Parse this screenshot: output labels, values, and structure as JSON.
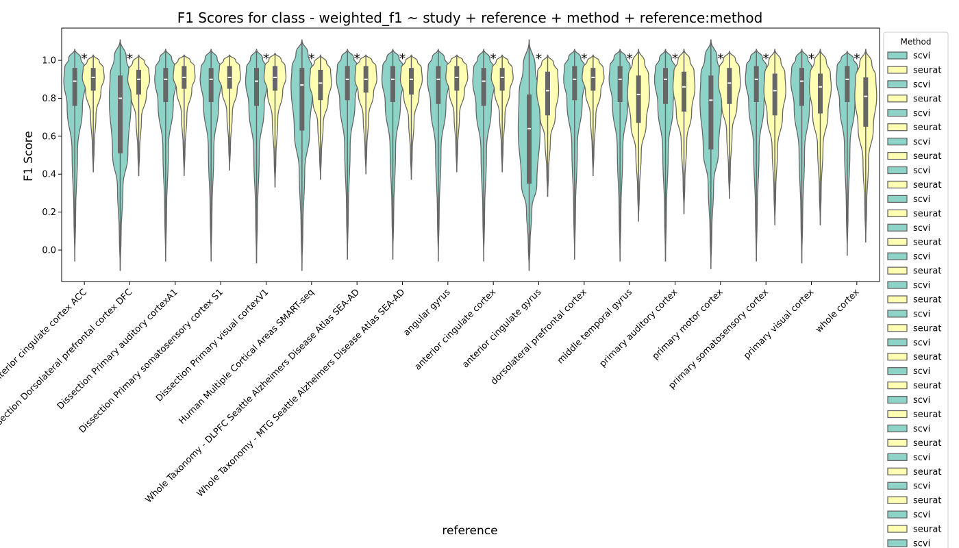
{
  "chart_data": {
    "type": "violin",
    "title": "F1 Scores for class - weighted_f1 ~ study + reference + method + reference:method",
    "x_label": "reference",
    "y_label": "F1 Score",
    "categories": [
      "Dissection Anterior cingulate cortex ACC",
      "Dissection Dorsolateral prefrontal cortex DFC",
      "Dissection Primary auditory cortexA1",
      "Dissection Primary somatosensory cortex S1",
      "Dissection Primary visual cortexV1",
      "Human Multiple Cortical Areas SMART-seq",
      "Whole Taxonomy - DLPFC Seattle Alzheimers Disease Atlas SEA-AD",
      "Whole Taxonomy - MTG Seattle Alzheimers Disease Atlas SEA-AD",
      "angular gyrus",
      "anterior cingulate cortex",
      "anterior cingulate gyrus",
      "dorsolateral prefrontal cortex",
      "middle temporal gyrus",
      "primary auditory cortex",
      "primary motor cortex",
      "primary somatosensory cortex",
      "primary visual cortex",
      "whole cortex"
    ],
    "significance": [
      "*",
      "*",
      null,
      null,
      "*",
      "*",
      "*",
      "*",
      null,
      "*",
      "*",
      "*",
      "*",
      "*",
      "*",
      "*",
      "*",
      "*"
    ],
    "series": [
      {
        "name": "scvi",
        "color": "#8dd3c7",
        "lo": [
          -0.06,
          -0.11,
          -0.06,
          -0.06,
          -0.07,
          -0.11,
          -0.05,
          -0.05,
          -0.06,
          -0.06,
          -0.11,
          -0.05,
          -0.06,
          -0.06,
          -0.1,
          -0.06,
          -0.07,
          -0.03
        ],
        "q1": [
          0.76,
          0.51,
          0.78,
          0.78,
          0.76,
          0.63,
          0.79,
          0.78,
          0.77,
          0.76,
          0.35,
          0.79,
          0.78,
          0.77,
          0.53,
          0.78,
          0.76,
          0.78
        ],
        "median": [
          0.89,
          0.8,
          0.9,
          0.9,
          0.89,
          0.87,
          0.9,
          0.9,
          0.9,
          0.89,
          0.64,
          0.9,
          0.9,
          0.9,
          0.79,
          0.9,
          0.89,
          0.9
        ],
        "q3": [
          0.96,
          0.92,
          0.96,
          0.96,
          0.96,
          0.96,
          0.97,
          0.97,
          0.97,
          0.96,
          0.82,
          0.97,
          0.97,
          0.96,
          0.92,
          0.97,
          0.96,
          0.97
        ],
        "hi": [
          1.06,
          1.11,
          1.06,
          1.06,
          1.06,
          1.11,
          1.06,
          1.06,
          1.06,
          1.06,
          1.11,
          1.06,
          1.06,
          1.06,
          1.11,
          1.06,
          1.06,
          1.05
        ]
      },
      {
        "name": "seurat",
        "color": "#ffffb3",
        "lo": [
          0.41,
          0.39,
          0.39,
          0.42,
          0.33,
          0.37,
          0.4,
          0.37,
          0.41,
          0.41,
          0.28,
          0.39,
          0.15,
          0.19,
          0.27,
          0.13,
          0.13,
          0.04
        ],
        "q1": [
          0.84,
          0.82,
          0.85,
          0.85,
          0.84,
          0.79,
          0.83,
          0.82,
          0.84,
          0.84,
          0.71,
          0.84,
          0.67,
          0.73,
          0.77,
          0.71,
          0.72,
          0.65
        ],
        "median": [
          0.91,
          0.9,
          0.91,
          0.91,
          0.91,
          0.88,
          0.9,
          0.9,
          0.91,
          0.91,
          0.84,
          0.91,
          0.82,
          0.86,
          0.88,
          0.84,
          0.86,
          0.81
        ],
        "q3": [
          0.96,
          0.95,
          0.97,
          0.97,
          0.97,
          0.95,
          0.97,
          0.96,
          0.97,
          0.96,
          0.94,
          0.96,
          0.92,
          0.94,
          0.96,
          0.93,
          0.93,
          0.91
        ],
        "hi": [
          1.03,
          1.03,
          1.03,
          1.03,
          1.04,
          1.03,
          1.03,
          1.03,
          1.03,
          1.03,
          1.03,
          1.03,
          1.06,
          1.06,
          1.05,
          1.06,
          1.06,
          1.06
        ]
      }
    ],
    "ylim": [
      -0.166,
      1.17
    ],
    "yticks": [
      {
        "value": 0,
        "label": "0.0"
      },
      {
        "value": 0.2,
        "label": "0.2"
      },
      {
        "value": 0.4,
        "label": "0.4"
      },
      {
        "value": 0.6,
        "label": "0.6"
      },
      {
        "value": 0.8,
        "label": "0.8"
      },
      {
        "value": 1,
        "label": "1.0"
      }
    ],
    "legend": {
      "title": "Method",
      "position": "right",
      "entries": [
        "scvi",
        "seurat",
        "scvi",
        "seurat",
        "scvi",
        "seurat",
        "scvi",
        "seurat",
        "scvi",
        "seurat",
        "scvi",
        "seurat",
        "scvi",
        "seurat",
        "scvi",
        "seurat",
        "scvi",
        "seurat",
        "scvi",
        "seurat",
        "scvi",
        "seurat",
        "scvi",
        "seurat",
        "scvi",
        "seurat",
        "scvi",
        "seurat",
        "scvi",
        "seurat",
        "scvi",
        "seurat",
        "scvi",
        "seurat",
        "scvi"
      ]
    }
  }
}
